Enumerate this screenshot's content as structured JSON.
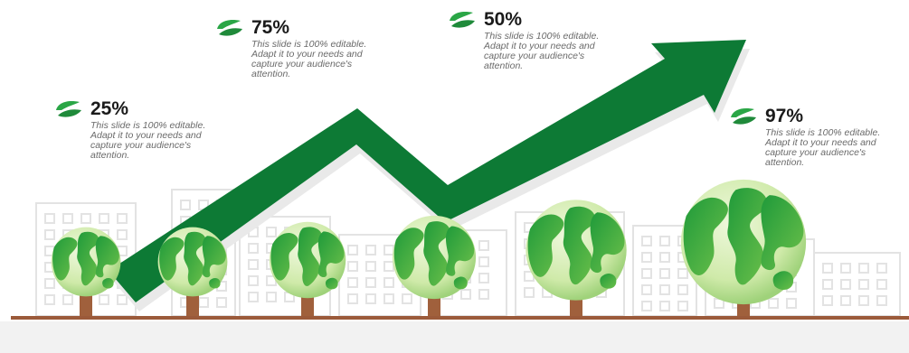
{
  "colors": {
    "arrow": "#0d7a35",
    "trunk": "#a0603c",
    "ground": "#9b5a3a",
    "globe_light": "#dff2c4",
    "globe_dark": "#3aaa3f",
    "building": "#e6e6e6",
    "footer": "#f2f2f2"
  },
  "icons": {
    "callout": "leaf-swirl-icon",
    "tree": "globe-tree-icon",
    "arrow": "trend-arrow-icon"
  },
  "callouts": [
    {
      "percent": "25%",
      "text": "This slide is 100% editable. Adapt it to your needs and capture your audience's attention."
    },
    {
      "percent": "75%",
      "text": "This slide is 100% editable. Adapt it to your needs and capture your audience's attention."
    },
    {
      "percent": "50%",
      "text": "This slide is 100% editable. Adapt it to your needs and capture your audience's attention."
    },
    {
      "percent": "97%",
      "text": "This slide is 100% editable. Adapt it to your needs and capture your audience's attention."
    }
  ]
}
